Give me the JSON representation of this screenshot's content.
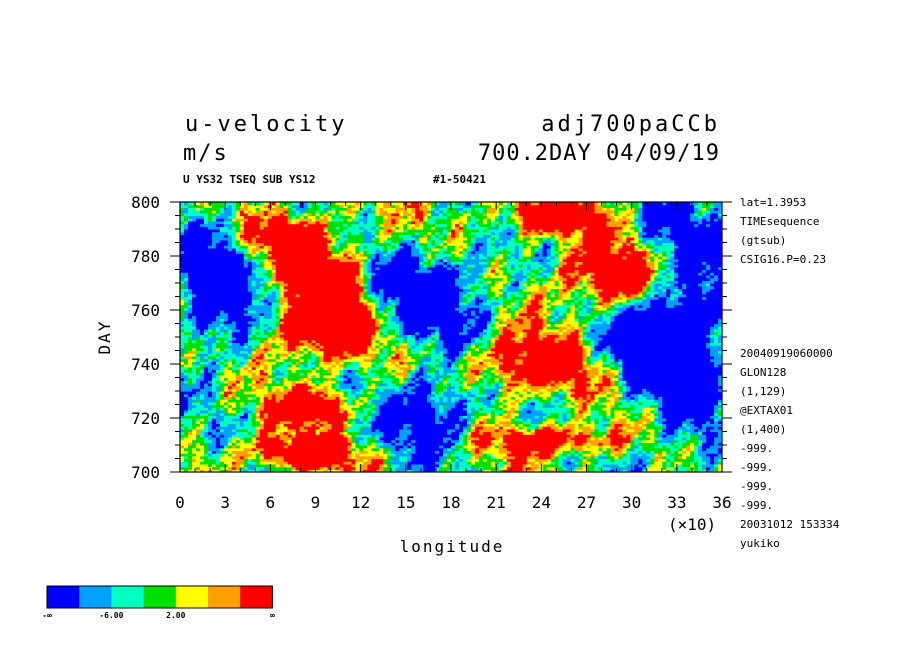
{
  "header": {
    "left_title": "u-velocity",
    "units": "m/s",
    "right_title": "adj700paCCb",
    "right_subtitle": "700.2DAY 04/09/19",
    "info_left": "U YS32 TSEQ SUB YS12",
    "info_right": "#1-50421"
  },
  "side_info": {
    "top_lines": [
      "lat=1.3953",
      "TIMEsequence",
      "(gtsub)",
      "CSIG16.P=0.23"
    ],
    "bottom_lines": [
      "20040919060000",
      "GLON128",
      "(1,129)",
      "@EXTAX01",
      "(1,400)",
      "-999.",
      "-999.",
      "-999.",
      "-999.",
      "20031012 153334",
      "yukiko"
    ]
  },
  "chart_data": {
    "type": "heatmap",
    "title": "u-velocity",
    "units": "m/s",
    "xlabel": "longitude",
    "ylabel": "DAY",
    "x_multiplier": "(×10)",
    "xlim": [
      0,
      36
    ],
    "ylim": [
      700,
      800
    ],
    "xticks": [
      "0",
      "3",
      "6",
      "9",
      "12",
      "15",
      "18",
      "21",
      "24",
      "27",
      "30",
      "33",
      "36"
    ],
    "yticks": [
      "700",
      "720",
      "740",
      "760",
      "780",
      "800"
    ],
    "legend": {
      "colors": [
        "#0000ff",
        "#00a0ff",
        "#00ffc0",
        "#00e000",
        "#ffff00",
        "#ffa000",
        "#ff0000"
      ],
      "labels": [
        "-∞",
        "-6.00",
        "2.00",
        "∞"
      ]
    },
    "red_bands": [
      {
        "lon": [
          5,
          11
        ],
        "day": [
          703,
          712
        ]
      },
      {
        "lon": [
          22,
          28
        ],
        "day": [
          708,
          716
        ]
      },
      {
        "lon": [
          7,
          11
        ],
        "day": [
          720,
          730
        ]
      },
      {
        "lon": [
          20,
          27
        ],
        "day": [
          732,
          748
        ]
      },
      {
        "lon": [
          6,
          12
        ],
        "day": [
          744,
          762
        ]
      },
      {
        "lon": [
          8,
          12
        ],
        "day": [
          758,
          782
        ]
      },
      {
        "lon": [
          26,
          32
        ],
        "day": [
          762,
          782
        ]
      },
      {
        "lon": [
          5,
          9
        ],
        "day": [
          780,
          794
        ]
      },
      {
        "lon": [
          22,
          27
        ],
        "day": [
          790,
          800
        ]
      }
    ],
    "blue_bands": [
      {
        "lon": [
          0,
          5
        ],
        "day": [
          745,
          790
        ]
      },
      {
        "lon": [
          13,
          20
        ],
        "day": [
          752,
          780
        ]
      },
      {
        "lon": [
          31,
          36
        ],
        "day": [
          715,
          800
        ]
      },
      {
        "lon": [
          14,
          19
        ],
        "day": [
          710,
          735
        ]
      },
      {
        "lon": [
          28,
          34
        ],
        "day": [
          735,
          760
        ]
      }
    ]
  }
}
